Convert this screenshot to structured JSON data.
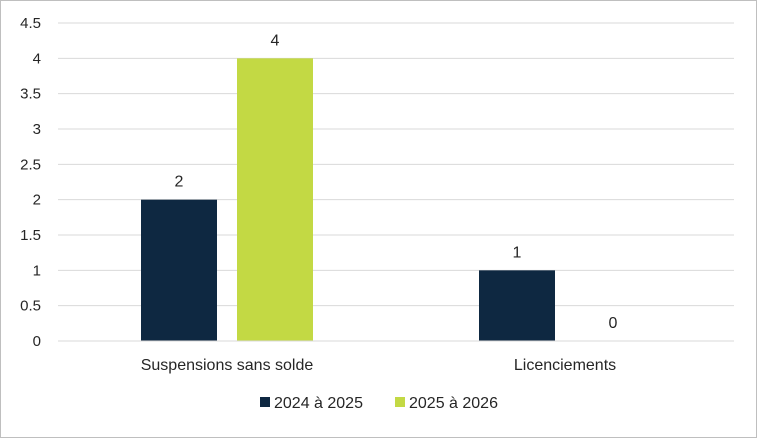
{
  "chart_data": {
    "type": "bar",
    "categories": [
      "Suspensions sans solde",
      "Licenciements"
    ],
    "series": [
      {
        "name": "2024 à 2025",
        "values": [
          2,
          1
        ],
        "color": "#0e2841"
      },
      {
        "name": "2025 à 2026",
        "values": [
          4,
          0
        ],
        "color": "#c3d944"
      }
    ],
    "ylim": [
      0,
      4.5
    ],
    "yticks": [
      "0",
      "0.5",
      "1",
      "1.5",
      "2",
      "2.5",
      "3",
      "3.5",
      "4",
      "4.5"
    ],
    "grid": true,
    "data_labels": true,
    "legend_position": "bottom"
  }
}
